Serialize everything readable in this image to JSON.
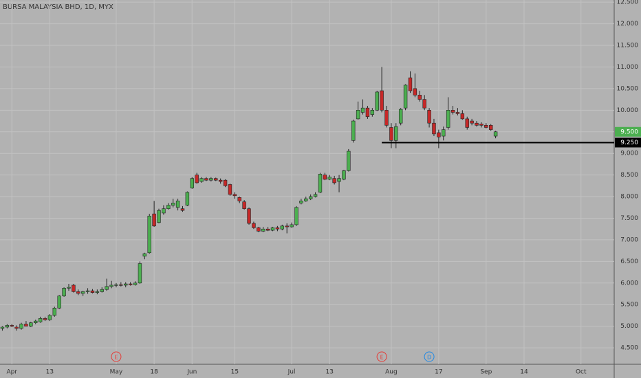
{
  "chart_data": {
    "type": "candlestick",
    "title": "BURSA MALAYSIA BHD, 1D, MYX",
    "x": [
      0,
      1,
      2,
      3,
      4,
      5,
      6,
      7,
      8,
      9,
      10,
      11,
      12,
      13,
      14,
      15,
      16,
      17,
      18,
      19,
      20,
      21,
      22,
      23,
      24,
      25,
      26,
      27,
      28,
      29,
      30,
      31,
      32,
      33,
      34,
      35,
      36,
      37,
      38,
      39,
      40,
      41,
      42,
      43,
      44,
      45,
      46,
      47,
      48,
      49,
      50,
      51,
      52,
      53,
      54,
      55,
      56,
      57,
      58,
      59,
      60,
      61,
      62,
      63,
      64,
      65,
      66,
      67,
      68,
      69,
      70,
      71,
      72,
      73,
      74,
      75,
      76,
      77,
      78,
      79,
      80,
      81,
      82,
      83,
      84,
      85,
      86,
      87,
      88,
      89,
      90,
      91,
      92,
      93,
      94,
      95,
      96,
      97,
      98,
      99,
      100,
      101,
      102,
      103,
      104
    ],
    "series": [
      {
        "up_color": "#4caf50",
        "down_color": "#c62828",
        "open": [
          4.95,
          4.98,
          5.02,
          4.98,
          4.95,
          5.05,
          5.0,
          5.08,
          5.1,
          5.18,
          5.15,
          5.25,
          5.42,
          5.7,
          5.88,
          5.95,
          5.8,
          5.76,
          5.8,
          5.82,
          5.78,
          5.8,
          5.85,
          5.92,
          5.95,
          5.96,
          5.95,
          5.98,
          5.96,
          6.0,
          6.62,
          6.7,
          7.6,
          7.4,
          7.62,
          7.72,
          7.8,
          7.75,
          7.72,
          7.8,
          8.2,
          8.5,
          8.35,
          8.42,
          8.38,
          8.42,
          8.38,
          8.38,
          8.28,
          8.05,
          7.98,
          7.88,
          7.72,
          7.38,
          7.28,
          7.2,
          7.25,
          7.22,
          7.28,
          7.25,
          7.32,
          7.3,
          7.35,
          7.85,
          7.9,
          7.95,
          8.0,
          8.1,
          8.5,
          8.4,
          8.42,
          8.35,
          8.4,
          8.6,
          9.3,
          9.8,
          9.95,
          10.05,
          9.9,
          10.0,
          10.45,
          10.0,
          9.6,
          9.3,
          9.7,
          10.05,
          10.75,
          10.5,
          10.35,
          10.25,
          10.0,
          9.7,
          9.48,
          9.4,
          9.6,
          10.0,
          9.95,
          9.92,
          9.8,
          9.75,
          9.7,
          9.68,
          9.65,
          9.65,
          9.4
        ],
        "high": [
          5.0,
          5.05,
          5.05,
          5.02,
          5.08,
          5.12,
          5.1,
          5.15,
          5.22,
          5.22,
          5.28,
          5.45,
          5.72,
          5.9,
          5.98,
          5.98,
          5.85,
          5.82,
          5.88,
          5.86,
          5.85,
          5.9,
          6.1,
          6.05,
          6.0,
          6.02,
          6.02,
          6.02,
          6.04,
          6.5,
          6.7,
          7.6,
          7.9,
          7.72,
          7.8,
          7.85,
          7.95,
          7.95,
          7.78,
          8.12,
          8.45,
          8.55,
          8.45,
          8.45,
          8.45,
          8.44,
          8.42,
          8.4,
          8.3,
          8.1,
          8.0,
          7.92,
          7.75,
          7.42,
          7.3,
          7.3,
          7.3,
          7.3,
          7.32,
          7.35,
          7.38,
          7.4,
          7.78,
          7.95,
          8.0,
          8.05,
          8.1,
          8.55,
          8.55,
          8.5,
          8.48,
          8.5,
          8.62,
          9.1,
          9.78,
          10.2,
          10.25,
          10.1,
          10.05,
          10.45,
          11.0,
          10.1,
          9.7,
          9.7,
          10.05,
          10.6,
          10.9,
          10.85,
          10.45,
          10.35,
          10.05,
          9.8,
          9.55,
          9.62,
          10.3,
          10.1,
          10.05,
          10.0,
          9.85,
          9.8,
          9.75,
          9.72,
          9.7,
          9.68,
          9.52
        ],
        "low": [
          4.9,
          4.95,
          4.98,
          4.9,
          4.92,
          5.0,
          4.98,
          5.05,
          5.08,
          5.12,
          5.12,
          5.22,
          5.4,
          5.68,
          5.82,
          5.78,
          5.72,
          5.7,
          5.75,
          5.76,
          5.74,
          5.78,
          5.82,
          5.88,
          5.9,
          5.92,
          5.9,
          5.94,
          5.94,
          5.98,
          6.55,
          6.68,
          7.3,
          7.38,
          7.58,
          7.7,
          7.75,
          7.68,
          7.65,
          7.78,
          8.18,
          8.3,
          8.32,
          8.36,
          8.35,
          8.36,
          8.3,
          8.22,
          8.02,
          7.95,
          7.85,
          7.7,
          7.35,
          7.25,
          7.18,
          7.18,
          7.2,
          7.2,
          7.2,
          7.22,
          7.15,
          7.28,
          7.32,
          7.82,
          7.88,
          7.92,
          7.98,
          8.08,
          8.38,
          8.38,
          8.28,
          8.1,
          8.38,
          8.58,
          9.25,
          9.78,
          9.9,
          9.8,
          9.85,
          9.98,
          9.95,
          9.6,
          9.12,
          9.12,
          9.65,
          10.0,
          10.4,
          10.3,
          10.2,
          10.0,
          9.6,
          9.4,
          9.12,
          9.3,
          9.55,
          9.9,
          9.88,
          9.78,
          9.55,
          9.65,
          9.62,
          9.6,
          9.58,
          9.52,
          9.35
        ],
        "close": [
          4.98,
          5.02,
          5.0,
          4.95,
          5.05,
          5.0,
          5.08,
          5.12,
          5.18,
          5.15,
          5.25,
          5.42,
          5.7,
          5.88,
          5.9,
          5.8,
          5.76,
          5.8,
          5.82,
          5.78,
          5.8,
          5.85,
          5.92,
          5.95,
          5.96,
          5.95,
          5.98,
          5.96,
          6.0,
          6.45,
          6.68,
          7.55,
          7.32,
          7.68,
          7.72,
          7.8,
          7.85,
          7.9,
          7.68,
          8.1,
          8.42,
          8.32,
          8.42,
          8.38,
          8.42,
          8.38,
          8.35,
          8.25,
          8.05,
          8.02,
          7.9,
          7.72,
          7.38,
          7.28,
          7.2,
          7.25,
          7.22,
          7.28,
          7.25,
          7.32,
          7.3,
          7.35,
          7.75,
          7.9,
          7.95,
          8.0,
          8.05,
          8.52,
          8.4,
          8.45,
          8.32,
          8.42,
          8.6,
          9.05,
          9.75,
          10.0,
          10.05,
          9.85,
          10.0,
          10.42,
          10.0,
          9.65,
          9.3,
          9.62,
          10.02,
          10.58,
          10.45,
          10.35,
          10.25,
          10.05,
          9.7,
          9.45,
          9.38,
          9.55,
          10.0,
          9.95,
          9.92,
          9.8,
          9.6,
          9.7,
          9.65,
          9.65,
          9.6,
          9.55,
          9.5
        ]
      }
    ],
    "xlim": [
      -0.5,
      129
    ],
    "xticks": [
      {
        "value": 2,
        "label": "Apr"
      },
      {
        "value": 10,
        "label": "13"
      },
      {
        "value": 24,
        "label": "May"
      },
      {
        "value": 32,
        "label": "18"
      },
      {
        "value": 40,
        "label": "Jun"
      },
      {
        "value": 49,
        "label": "15"
      },
      {
        "value": 61,
        "label": "Jul"
      },
      {
        "value": 69,
        "label": "13"
      },
      {
        "value": 82,
        "label": "Aug"
      },
      {
        "value": 92,
        "label": "17"
      },
      {
        "value": 102,
        "label": "Sep"
      },
      {
        "value": 110,
        "label": "14"
      },
      {
        "value": 122,
        "label": "Oct"
      }
    ],
    "ylim": [
      4.12,
      12.55
    ],
    "yticks": [
      {
        "value": 4.5,
        "label": "4.500"
      },
      {
        "value": 5,
        "label": "5.000"
      },
      {
        "value": 5.5,
        "label": "5.500"
      },
      {
        "value": 6,
        "label": "6.000"
      },
      {
        "value": 6.5,
        "label": "6.500"
      },
      {
        "value": 7,
        "label": "7.000"
      },
      {
        "value": 7.5,
        "label": "7.500"
      },
      {
        "value": 8,
        "label": "8.000"
      },
      {
        "value": 8.5,
        "label": "8.500"
      },
      {
        "value": 9,
        "label": "9.000"
      },
      {
        "value": 9.5,
        "label": "9.500"
      },
      {
        "value": 10,
        "label": "10.000"
      },
      {
        "value": 10.5,
        "label": "10.500"
      },
      {
        "value": 11,
        "label": "11.000"
      },
      {
        "value": 11.5,
        "label": "11.500"
      },
      {
        "value": 12,
        "label": "12.000"
      },
      {
        "value": 12.5,
        "label": "12.500"
      }
    ],
    "grid": true,
    "last_price": {
      "value": 9.5,
      "label": "9.500",
      "color": "#4caf50"
    },
    "hline": {
      "value": 9.25,
      "label": "9.250",
      "from": 80,
      "color": "#000000"
    },
    "events": [
      {
        "x": 24,
        "label": "E",
        "color": "#e53935"
      },
      {
        "x": 80,
        "label": "E",
        "color": "#e53935"
      },
      {
        "x": 90,
        "label": "D",
        "color": "#1e88e5"
      }
    ]
  }
}
